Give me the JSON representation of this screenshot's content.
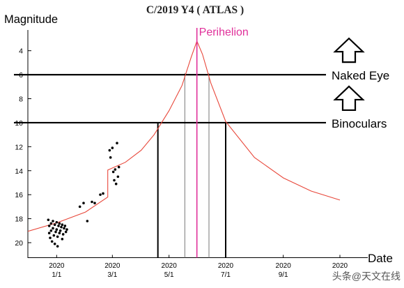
{
  "chart_data": {
    "type": "line",
    "title": "C/2019 Y4 ( ATLAS )",
    "ylabel": "Magnitude",
    "xlabel": "Date",
    "y_axis": {
      "min": 21,
      "max": 2.2,
      "inverted": true,
      "tick_values": [
        4,
        6,
        8,
        10,
        12,
        14,
        16,
        18,
        20
      ]
    },
    "x_axis": {
      "start": "2019-12-01",
      "end": "2020-12-01",
      "ticks": [
        {
          "date": "2020-01-01",
          "year": "2020",
          "md": "1/1"
        },
        {
          "date": "2020-03-01",
          "year": "2020",
          "md": "3/1"
        },
        {
          "date": "2020-05-01",
          "year": "2020",
          "md": "5/1"
        },
        {
          "date": "2020-07-01",
          "year": "2020",
          "md": "7/1"
        },
        {
          "date": "2020-09-01",
          "year": "2020",
          "md": "9/1"
        },
        {
          "date": "2020-11-01",
          "year": "2020",
          "md": ""
        }
      ]
    },
    "perihelion": {
      "label": "Perihelion",
      "date": "2020-05-31",
      "color": "#e0309a"
    },
    "thresholds": [
      {
        "label": "Naked Eye",
        "magnitude": 6,
        "arrow": "up-arrow-icon"
      },
      {
        "label": "Binoculars",
        "magnitude": 10,
        "arrow": "up-arrow-icon"
      }
    ],
    "binocular_window": {
      "start": "2020-04-19",
      "end": "2020-07-01"
    },
    "naked_eye_window": {
      "start": "2020-05-18",
      "end": "2020-06-13"
    },
    "prediction_color": "#e8473a",
    "prediction_curve": [
      {
        "date": "2019-12-01",
        "mag": 19.05
      },
      {
        "date": "2020-01-01",
        "mag": 18.35
      },
      {
        "date": "2020-02-01",
        "mag": 17.45
      },
      {
        "date": "2020-02-25",
        "mag": 16.2
      },
      {
        "date": "2020-02-25",
        "mag": 13.95
      },
      {
        "date": "2020-03-15",
        "mag": 13.3
      },
      {
        "date": "2020-04-01",
        "mag": 12.3
      },
      {
        "date": "2020-04-15",
        "mag": 11.0
      },
      {
        "date": "2020-05-01",
        "mag": 9.0
      },
      {
        "date": "2020-05-15",
        "mag": 6.9
      },
      {
        "date": "2020-05-25",
        "mag": 4.5
      },
      {
        "date": "2020-05-31",
        "mag": 3.2
      },
      {
        "date": "2020-06-06",
        "mag": 4.3
      },
      {
        "date": "2020-06-15",
        "mag": 6.7
      },
      {
        "date": "2020-07-01",
        "mag": 9.9
      },
      {
        "date": "2020-08-01",
        "mag": 12.9
      },
      {
        "date": "2020-09-01",
        "mag": 14.6
      },
      {
        "date": "2020-10-01",
        "mag": 15.7
      },
      {
        "date": "2020-11-01",
        "mag": 16.45
      }
    ],
    "observations": [
      {
        "date": "2019-12-23",
        "mag": 18.1
      },
      {
        "date": "2019-12-24",
        "mag": 18.6
      },
      {
        "date": "2019-12-24",
        "mag": 19.2
      },
      {
        "date": "2019-12-25",
        "mag": 19.6
      },
      {
        "date": "2019-12-26",
        "mag": 18.4
      },
      {
        "date": "2019-12-26",
        "mag": 19.0
      },
      {
        "date": "2019-12-27",
        "mag": 19.9
      },
      {
        "date": "2019-12-28",
        "mag": 18.2
      },
      {
        "date": "2019-12-28",
        "mag": 18.8
      },
      {
        "date": "2019-12-29",
        "mag": 19.4
      },
      {
        "date": "2019-12-30",
        "mag": 20.1
      },
      {
        "date": "2019-12-30",
        "mag": 18.5
      },
      {
        "date": "2019-12-31",
        "mag": 19.1
      },
      {
        "date": "2020-01-01",
        "mag": 18.3
      },
      {
        "date": "2020-01-01",
        "mag": 18.9
      },
      {
        "date": "2020-01-02",
        "mag": 19.5
      },
      {
        "date": "2020-01-02",
        "mag": 20.3
      },
      {
        "date": "2020-01-03",
        "mag": 18.6
      },
      {
        "date": "2020-01-04",
        "mag": 19.2
      },
      {
        "date": "2020-01-04",
        "mag": 18.4
      },
      {
        "date": "2020-01-05",
        "mag": 19.0
      },
      {
        "date": "2020-01-06",
        "mag": 18.7
      },
      {
        "date": "2020-01-07",
        "mag": 19.7
      },
      {
        "date": "2020-01-07",
        "mag": 18.5
      },
      {
        "date": "2020-01-08",
        "mag": 19.3
      },
      {
        "date": "2020-01-09",
        "mag": 18.8
      },
      {
        "date": "2020-01-10",
        "mag": 18.6
      },
      {
        "date": "2020-01-11",
        "mag": 19.1
      },
      {
        "date": "2020-01-12",
        "mag": 18.9
      },
      {
        "date": "2020-01-26",
        "mag": 17.0
      },
      {
        "date": "2020-01-30",
        "mag": 16.7
      },
      {
        "date": "2020-02-03",
        "mag": 18.2
      },
      {
        "date": "2020-02-08",
        "mag": 16.6
      },
      {
        "date": "2020-02-11",
        "mag": 16.7
      },
      {
        "date": "2020-02-17",
        "mag": 16.0
      },
      {
        "date": "2020-02-20",
        "mag": 15.9
      },
      {
        "date": "2020-02-27",
        "mag": 12.3
      },
      {
        "date": "2020-02-28",
        "mag": 12.9
      },
      {
        "date": "2020-03-01",
        "mag": 12.1
      },
      {
        "date": "2020-03-02",
        "mag": 14.1
      },
      {
        "date": "2020-03-03",
        "mag": 14.8
      },
      {
        "date": "2020-03-04",
        "mag": 13.9
      },
      {
        "date": "2020-03-05",
        "mag": 15.1
      },
      {
        "date": "2020-03-06",
        "mag": 11.7
      },
      {
        "date": "2020-03-07",
        "mag": 14.5
      },
      {
        "date": "2020-03-08",
        "mag": 13.7
      }
    ]
  },
  "watermark": "头条@天文在线"
}
